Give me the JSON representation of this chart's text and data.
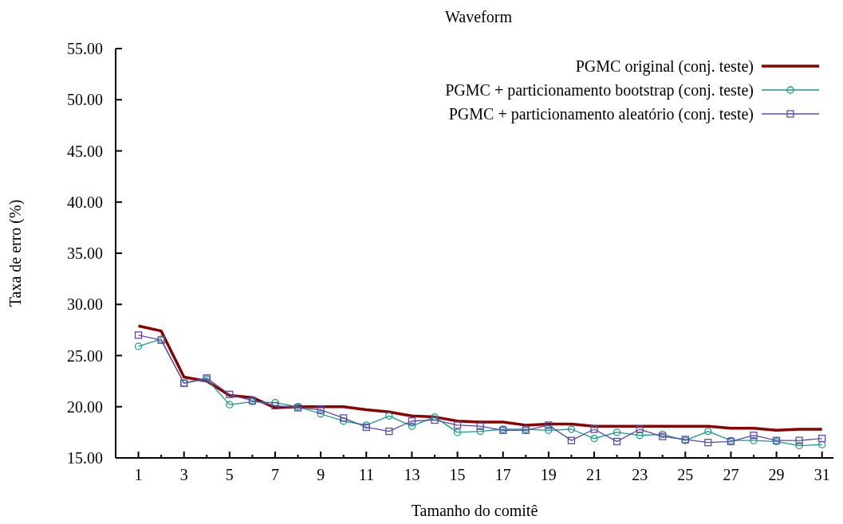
{
  "chart_data": {
    "type": "line",
    "title": "Waveform",
    "xlabel": "Tamanho do comitê",
    "ylabel": "Taxa de erro (%)",
    "x": [
      1,
      2,
      3,
      4,
      5,
      6,
      7,
      8,
      9,
      10,
      11,
      12,
      13,
      14,
      15,
      16,
      17,
      18,
      19,
      20,
      21,
      22,
      23,
      24,
      25,
      26,
      27,
      28,
      29,
      30,
      31
    ],
    "xlim": [
      0,
      31.5
    ],
    "xticks": [
      1,
      {
        "value": 2,
        "label": null
      },
      3,
      {
        "value": 4,
        "label": null
      },
      5,
      {
        "value": 6,
        "label": null
      },
      7,
      {
        "value": 8,
        "label": null
      },
      9,
      {
        "value": 10,
        "label": null
      },
      11,
      {
        "value": 12,
        "label": null
      },
      13,
      {
        "value": 14,
        "label": null
      },
      15,
      {
        "value": 16,
        "label": null
      },
      17,
      {
        "value": 18,
        "label": null
      },
      19,
      {
        "value": 20,
        "label": null
      },
      21,
      {
        "value": 22,
        "label": null
      },
      23,
      {
        "value": 24,
        "label": null
      },
      25,
      {
        "value": 26,
        "label": null
      },
      27,
      {
        "value": 28,
        "label": null
      },
      29,
      {
        "value": 30,
        "label": null
      },
      31
    ],
    "ylim": [
      15,
      55
    ],
    "yticks": [
      {
        "value": 15,
        "label": "15.00"
      },
      {
        "value": 20,
        "label": "20.00"
      },
      {
        "value": 25,
        "label": "25.00"
      },
      {
        "value": 30,
        "label": "30.00"
      },
      {
        "value": 35,
        "label": "35.00"
      },
      {
        "value": 40,
        "label": "40.00"
      },
      {
        "value": 45,
        "label": "45.00"
      },
      {
        "value": 50,
        "label": "50.00"
      },
      {
        "value": 55,
        "label": "55.00"
      }
    ],
    "grid": false,
    "legend": "top right",
    "series": [
      {
        "name": "PGMC original (conj. teste)",
        "color": "#8b0000",
        "marker": "none",
        "values": [
          27.9,
          27.4,
          22.9,
          22.5,
          21.1,
          20.9,
          19.9,
          20.0,
          20.0,
          20.0,
          19.7,
          19.5,
          19.1,
          19.0,
          18.6,
          18.5,
          18.5,
          18.2,
          18.3,
          18.3,
          18.1,
          18.1,
          18.1,
          18.1,
          18.1,
          18.1,
          17.9,
          17.9,
          17.7,
          17.8,
          17.8
        ]
      },
      {
        "name": "PGMC + particionamento bootstrap (conj. teste)",
        "color": "#1a9a8c",
        "marker": "circle",
        "values": [
          25.9,
          26.6,
          22.3,
          22.7,
          20.2,
          20.5,
          20.4,
          20.0,
          19.3,
          18.6,
          18.2,
          19.1,
          18.1,
          19.0,
          17.5,
          17.6,
          17.8,
          17.8,
          17.7,
          17.8,
          16.9,
          17.5,
          17.2,
          17.3,
          16.7,
          17.6,
          16.7,
          16.7,
          16.6,
          16.2,
          16.3
        ]
      },
      {
        "name": "PGMC + particionamento aleatório (conj. teste)",
        "color": "#5a4aa8",
        "marker": "square",
        "values": [
          27.0,
          26.5,
          22.3,
          22.8,
          21.2,
          20.6,
          20.1,
          19.9,
          19.7,
          18.9,
          18.0,
          17.6,
          18.6,
          18.7,
          18.2,
          18.1,
          17.7,
          17.7,
          18.2,
          16.7,
          17.8,
          16.6,
          17.8,
          17.1,
          16.8,
          16.5,
          16.6,
          17.2,
          16.7,
          16.7,
          16.9
        ]
      }
    ]
  }
}
